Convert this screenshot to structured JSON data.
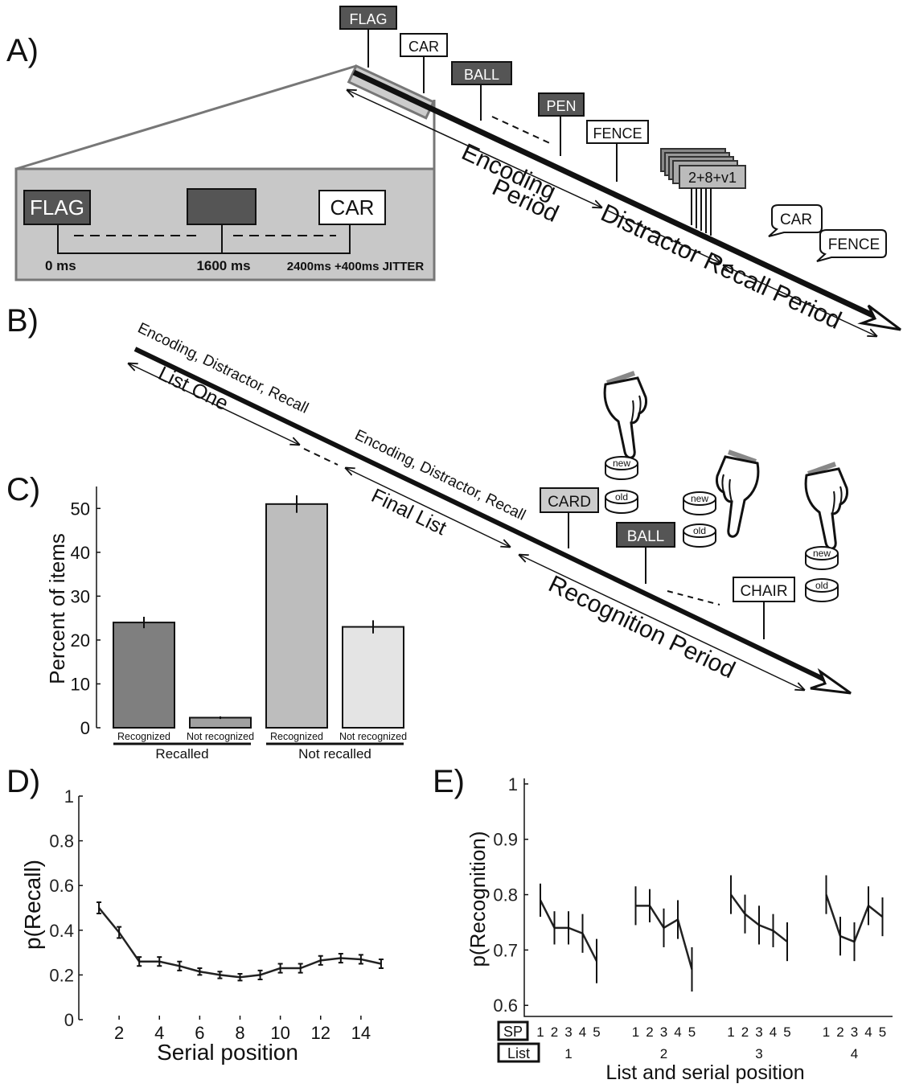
{
  "figure": {
    "a": {
      "label": "A)",
      "words": [
        "FLAG",
        "CAR",
        "BALL",
        "PEN",
        "FENCE"
      ],
      "inset": {
        "first": "FLAG",
        "second": "CAR",
        "times": [
          "0 ms",
          "1600 ms",
          "2400ms +400ms JITTER"
        ]
      },
      "distractor": "2+8+v1",
      "encoding": [
        "Encoding",
        "Period"
      ],
      "distractor_recall": "Distractor Recall Period",
      "recalled": [
        "CAR",
        "FENCE"
      ]
    },
    "b": {
      "label": "B)",
      "phases": [
        "Encoding, Distractor, Recall",
        "Encoding, Distractor, Recall"
      ],
      "list_one": "List One",
      "final_list": "Final List",
      "recognition": "Recognition Period",
      "words": [
        "CARD",
        "BALL",
        "CHAIR"
      ],
      "buttons": [
        [
          "new",
          "old"
        ],
        [
          "new",
          "old"
        ],
        [
          "new",
          "old"
        ]
      ]
    }
  },
  "chart_data": [
    {
      "type": "bar",
      "label": "C)",
      "ylabel": "Percent of items",
      "categories": [
        "Recognized",
        "Not recognized",
        "Recognized",
        "Not recognized"
      ],
      "groups": [
        "Recalled",
        "Not recalled"
      ],
      "values": [
        24,
        2.3,
        51,
        23
      ],
      "errors": [
        1.3,
        0.3,
        2,
        1.5
      ],
      "colors": [
        "#7f7f7f",
        "#a0a0a0",
        "#bdbdbd",
        "#e4e4e4"
      ],
      "ylim": [
        0,
        55
      ],
      "yticks": [
        0,
        10,
        20,
        30,
        40,
        50
      ]
    },
    {
      "type": "line",
      "label": "D)",
      "xlabel": "Serial position",
      "ylabel": "p(Recall)",
      "color": "#222",
      "x": [
        1,
        2,
        3,
        4,
        5,
        6,
        7,
        8,
        9,
        10,
        11,
        12,
        13,
        14,
        15
      ],
      "values": [
        0.5,
        0.39,
        0.26,
        0.26,
        0.24,
        0.215,
        0.2,
        0.19,
        0.2,
        0.23,
        0.23,
        0.265,
        0.275,
        0.27,
        0.25
      ],
      "errors": [
        0.025,
        0.025,
        0.02,
        0.02,
        0.02,
        0.015,
        0.015,
        0.015,
        0.02,
        0.02,
        0.02,
        0.02,
        0.02,
        0.02,
        0.02
      ],
      "xlim": [
        0,
        16
      ],
      "ylim": [
        0,
        1
      ],
      "xticks": [
        2,
        4,
        6,
        8,
        10,
        12,
        14
      ],
      "yticks": [
        0,
        0.2,
        0.4,
        0.6,
        0.8,
        1
      ]
    },
    {
      "type": "grouped-line",
      "label": "E)",
      "xlabel": "List and serial position",
      "ylabel": "p(Recognition)",
      "sp_label": "SP",
      "list_label": "List",
      "color": "#222",
      "positions": [
        "1",
        "2",
        "3",
        "4",
        "5"
      ],
      "series": [
        {
          "name": "1",
          "values": [
            0.79,
            0.74,
            0.74,
            0.73,
            0.68
          ],
          "errors": [
            0.03,
            0.03,
            0.03,
            0.035,
            0.04
          ]
        },
        {
          "name": "2",
          "values": [
            0.78,
            0.78,
            0.74,
            0.755,
            0.665
          ],
          "errors": [
            0.035,
            0.03,
            0.035,
            0.035,
            0.04
          ]
        },
        {
          "name": "3",
          "values": [
            0.8,
            0.765,
            0.745,
            0.735,
            0.715
          ],
          "errors": [
            0.035,
            0.035,
            0.035,
            0.03,
            0.035
          ]
        },
        {
          "name": "4",
          "values": [
            0.8,
            0.725,
            0.715,
            0.78,
            0.76
          ],
          "errors": [
            0.035,
            0.035,
            0.035,
            0.035,
            0.035
          ]
        }
      ],
      "ylim": [
        0.58,
        1.01
      ],
      "yticks": [
        0.6,
        0.7,
        0.8,
        0.9,
        1
      ]
    }
  ]
}
